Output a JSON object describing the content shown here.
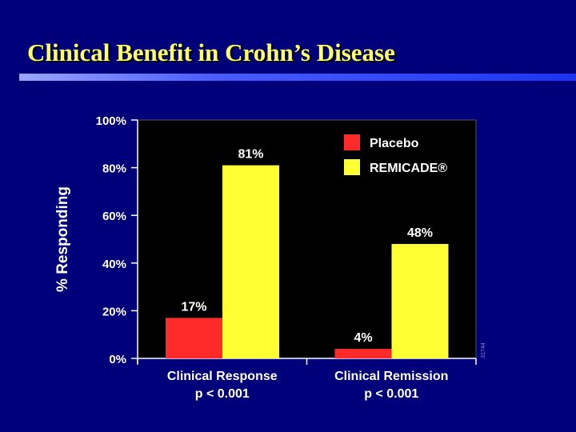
{
  "slide": {
    "title": "Clinical Benefit in Crohn’s Disease",
    "footnote": "31744"
  },
  "colors": {
    "background": "#00007a",
    "title": "#ffff66",
    "plot_bg": "#000000",
    "axis": "#ffffff",
    "placebo": "#ff2a2a",
    "remicade": "#ffff33"
  },
  "chart_data": {
    "type": "bar",
    "title": "",
    "xlabel": "",
    "ylabel": "% Responding",
    "ylim": [
      0,
      100
    ],
    "yticks": [
      0,
      20,
      40,
      60,
      80,
      100
    ],
    "ytick_labels": [
      "0%",
      "20%",
      "40%",
      "60%",
      "80%",
      "100%"
    ],
    "grid": false,
    "legend_position": "top-right",
    "categories": [
      "Clinical Response",
      "Clinical Remission"
    ],
    "category_sublabels": [
      "p < 0.001",
      "p < 0.001"
    ],
    "series": [
      {
        "name": "Placebo",
        "color": "#ff2a2a",
        "values": [
          17,
          4
        ],
        "value_labels": [
          "17%",
          "4%"
        ]
      },
      {
        "name": "REMICADE®",
        "color": "#ffff33",
        "values": [
          81,
          48
        ],
        "value_labels": [
          "81%",
          "48%"
        ]
      }
    ]
  }
}
